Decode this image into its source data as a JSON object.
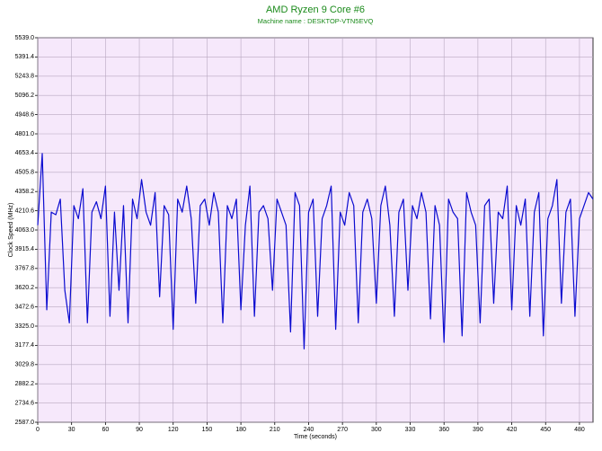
{
  "chart_data": {
    "type": "line",
    "title": "AMD Ryzen 9 Core #6",
    "subtitle": "Machine name : DESKTOP-VTN5EVQ",
    "xlabel": "Time (seconds)",
    "ylabel": "Clock Speed (MHz)",
    "color": "#0b0bd0",
    "grid": true,
    "xlim": [
      0,
      492
    ],
    "xticks": [
      0,
      30,
      60,
      90,
      120,
      150,
      180,
      210,
      240,
      270,
      300,
      330,
      360,
      390,
      420,
      450,
      480
    ],
    "ylim": [
      2587,
      5539
    ],
    "yticks": [
      {
        "value": 2587,
        "label": "2587.0"
      },
      2734.6,
      2882.2,
      3029.8,
      3177.4,
      {
        "value": 3325,
        "label": "3325.0"
      },
      3472.6,
      3620.2,
      3767.8,
      3915.4,
      {
        "value": 4063,
        "label": "4063.0"
      },
      4210.6,
      4358.2,
      4505.8,
      4653.4,
      {
        "value": 4801,
        "label": "4801.0"
      },
      4948.6,
      5096.2,
      5243.8,
      5391.4,
      {
        "value": 5539,
        "label": "5539.0"
      }
    ],
    "x": [
      0,
      4,
      8,
      12,
      16,
      20,
      24,
      28,
      32,
      36,
      40,
      44,
      48,
      52,
      56,
      60,
      64,
      68,
      72,
      76,
      80,
      84,
      88,
      92,
      96,
      100,
      104,
      108,
      112,
      116,
      120,
      124,
      128,
      132,
      136,
      140,
      144,
      148,
      152,
      156,
      160,
      164,
      168,
      172,
      176,
      180,
      184,
      188,
      192,
      196,
      200,
      204,
      208,
      212,
      216,
      220,
      224,
      228,
      232,
      236,
      240,
      244,
      248,
      252,
      256,
      260,
      264,
      268,
      272,
      276,
      280,
      284,
      288,
      292,
      296,
      300,
      304,
      308,
      312,
      316,
      320,
      324,
      328,
      332,
      336,
      340,
      344,
      348,
      352,
      356,
      360,
      364,
      368,
      372,
      376,
      380,
      384,
      388,
      392,
      396,
      400,
      404,
      408,
      412,
      416,
      420,
      424,
      428,
      432,
      436,
      440,
      444,
      448,
      452,
      456,
      460,
      464,
      468,
      472,
      476,
      480,
      484,
      488,
      492
    ],
    "values": [
      4100,
      4650,
      3450,
      4200,
      4180,
      4300,
      3600,
      3350,
      4250,
      4150,
      4380,
      3350,
      4200,
      4280,
      4150,
      4400,
      3400,
      4200,
      3600,
      4250,
      3350,
      4300,
      4150,
      4450,
      4200,
      4100,
      4350,
      3550,
      4250,
      4180,
      3300,
      4300,
      4200,
      4400,
      4150,
      3500,
      4250,
      4300,
      4100,
      4350,
      4200,
      3350,
      4250,
      4150,
      4300,
      3450,
      4100,
      4400,
      3400,
      4200,
      4250,
      4150,
      3600,
      4300,
      4200,
      4100,
      3280,
      4350,
      4250,
      3150,
      4200,
      4300,
      3400,
      4150,
      4250,
      4400,
      3300,
      4200,
      4100,
      4350,
      4250,
      3350,
      4200,
      4300,
      4150,
      3500,
      4250,
      4400,
      4100,
      3400,
      4200,
      4300,
      3600,
      4250,
      4150,
      4350,
      4200,
      3380,
      4250,
      4100,
      3200,
      4300,
      4200,
      4150,
      3250,
      4350,
      4200,
      4100,
      3350,
      4250,
      4300,
      3500,
      4200,
      4150,
      4400,
      3450,
      4250,
      4100,
      4300,
      3400,
      4200,
      4350,
      3250,
      4150,
      4250,
      4450,
      3500,
      4200,
      4300,
      3400,
      4150,
      4250,
      4350,
      4300
    ]
  }
}
